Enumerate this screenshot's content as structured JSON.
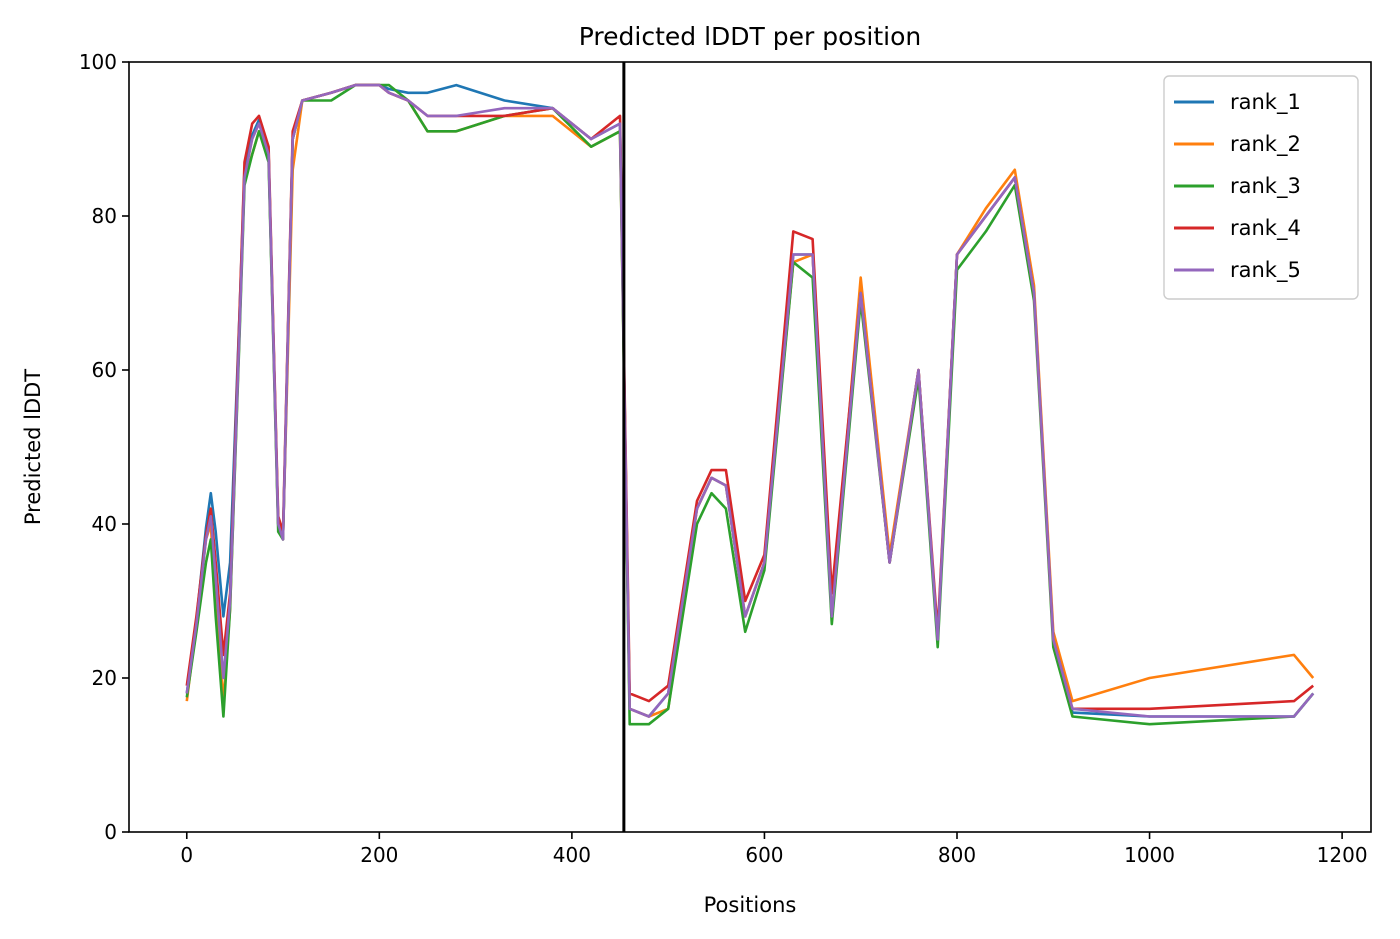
{
  "chart_data": {
    "type": "line",
    "title": "Predicted lDDT per position",
    "xlabel": "Positions",
    "ylabel": "Predicted lDDT",
    "xlim": [
      -60,
      1230
    ],
    "ylim": [
      0,
      100
    ],
    "xticks": [
      0,
      200,
      400,
      600,
      800,
      1000,
      1200
    ],
    "yticks": [
      0,
      20,
      40,
      60,
      80,
      100
    ],
    "grid": false,
    "legend_position": "top-right",
    "chain_break_x": 454,
    "chain_break_color": "#000000",
    "colors": {
      "rank_1": "#1f77b4",
      "rank_2": "#ff7f0e",
      "rank_3": "#2ca02c",
      "rank_4": "#d62728",
      "rank_5": "#9467bd"
    },
    "series": [
      {
        "name": "rank_1",
        "offsets": [
          0,
          0.5,
          1.5,
          3,
          6,
          8,
          5,
          2,
          1,
          0.5,
          0.5,
          0,
          0,
          0,
          0,
          0,
          0,
          0,
          0,
          0.5,
          1,
          3,
          4,
          1,
          0,
          0,
          0,
          0,
          0,
          0,
          0,
          0,
          0,
          0,
          0,
          0,
          0,
          0,
          0,
          0,
          0,
          0,
          0,
          0,
          0,
          0,
          0,
          -0.5,
          0,
          0,
          0
        ]
      },
      {
        "name": "rank_2",
        "offsets": [
          -1,
          0,
          0,
          -1,
          -4,
          -3,
          -1,
          0,
          0,
          -2,
          -1,
          0,
          0,
          0,
          -4,
          0,
          0,
          0,
          0,
          0,
          0,
          -2,
          -2,
          -1,
          -1,
          -1,
          -1,
          0,
          0,
          -2,
          0,
          0,
          0,
          0,
          0,
          -1,
          0,
          0,
          2,
          1,
          0,
          0,
          0,
          1,
          1,
          1,
          1,
          1,
          5,
          8,
          2
        ]
      },
      {
        "name": "rank_3",
        "offsets": [
          -0.5,
          -1,
          -3,
          -3,
          -5,
          -5,
          -1,
          -1,
          -1,
          -2,
          -1,
          -1,
          -1,
          0,
          0,
          0,
          -1,
          0,
          0,
          1,
          0,
          -2,
          -2,
          -1,
          0,
          -1,
          -1,
          -2,
          -1,
          -2,
          -2,
          -2,
          -3,
          -2,
          -1,
          -1,
          -3,
          -1,
          -1,
          0,
          -1,
          -1,
          -2,
          -2,
          -1,
          -1,
          -1,
          -1,
          -1,
          0,
          0
        ]
      },
      {
        "name": "rank_4",
        "offsets": [
          1,
          1,
          0.5,
          1,
          2,
          3,
          1,
          2,
          2,
          2,
          1,
          1,
          1,
          1,
          1,
          0,
          0,
          0,
          0,
          0,
          0,
          0,
          0,
          -1,
          0,
          0,
          1,
          2,
          2,
          1,
          1,
          1,
          2,
          2,
          1,
          3,
          2,
          3,
          0,
          0,
          0,
          1,
          0,
          0,
          0,
          0,
          0,
          0,
          1,
          2,
          1
        ]
      },
      {
        "name": "rank_5",
        "offsets": [
          0,
          0,
          0,
          0,
          0,
          0,
          0,
          0,
          0,
          0,
          0,
          0,
          0,
          0,
          0,
          0,
          0,
          0,
          0,
          0,
          0,
          0,
          0,
          0,
          0,
          0,
          0,
          0,
          0,
          0,
          0,
          0,
          0,
          0,
          0,
          0,
          0,
          0,
          0,
          0,
          0,
          0,
          0,
          0,
          0,
          0,
          0,
          0,
          0,
          0,
          0
        ]
      }
    ],
    "base_x": [
      0,
      10,
      20,
      25,
      30,
      38,
      45,
      55,
      60,
      68,
      75,
      85,
      95,
      100,
      110,
      120,
      150,
      175,
      200,
      210,
      230,
      250,
      280,
      330,
      380,
      420,
      450,
      460,
      480,
      500,
      530,
      545,
      560,
      580,
      600,
      630,
      650,
      670,
      700,
      730,
      760,
      780,
      800,
      830,
      860,
      880,
      900,
      920,
      1000,
      1150,
      1170
    ],
    "base_y": [
      18,
      27,
      38,
      41,
      33,
      20,
      30,
      66,
      85,
      90,
      92,
      88,
      40,
      38,
      90,
      95,
      96,
      97,
      97,
      96,
      95,
      93,
      93,
      94,
      94,
      90,
      92,
      16,
      15,
      18,
      42,
      46,
      45,
      28,
      35,
      75,
      75,
      28,
      70,
      35,
      60,
      25,
      75,
      80,
      85,
      70,
      25,
      16,
      15,
      15,
      18
    ]
  }
}
